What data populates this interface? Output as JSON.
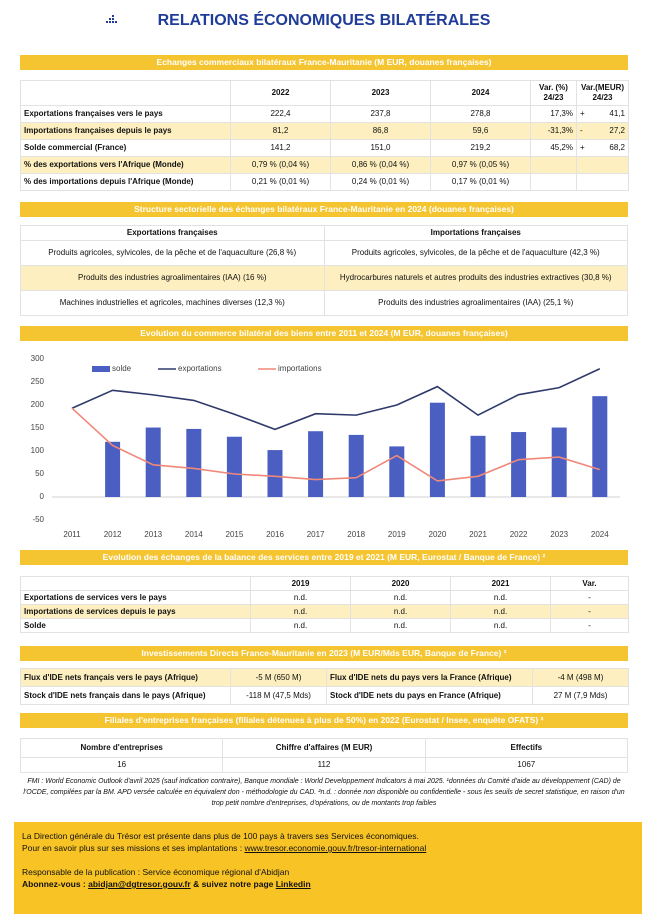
{
  "header": {
    "title": "RELATIONS ÉCONOMIQUES BILATÉRALES"
  },
  "trade": {
    "title": "Echanges commerciaux bilatéraux France-Mauritanie (M EUR, douanes françaises)",
    "columns": [
      "2022",
      "2023",
      "2024",
      [
        "Var. (%)",
        "24/23"
      ],
      [
        "Var.(MEUR)",
        "24/23"
      ]
    ],
    "rows": [
      [
        "Exportations françaises vers le pays",
        "222,4",
        "237,8",
        "278,8",
        "17,3%",
        "+",
        "41,1"
      ],
      [
        "Importations françaises depuis le pays",
        "81,2",
        "86,8",
        "59,6",
        "-31,3%",
        "-",
        "27,2"
      ],
      [
        "Solde commercial (France)",
        "141,2",
        "151,0",
        "219,2",
        "45,2%",
        "+",
        "68,2"
      ],
      [
        "% des exportations vers l'Afrique (Monde)",
        "0,79 % (0,04 %)",
        "0,86 % (0,04 %)",
        "0,97 % (0,05 %)"
      ],
      [
        "% des importations depuis l'Afrique (Monde)",
        "0,21 % (0,01 %)",
        "0,24 % (0,01 %)",
        "0,17 % (0,01 %)"
      ]
    ]
  },
  "sectors": {
    "title": "Structure sectorielle des échanges bilatéraux France-Mauritanie en 2024 (douanes françaises)",
    "headers": [
      "Exportations françaises",
      "Importations françaises"
    ],
    "rows": [
      [
        "Produits agricoles, sylvicoles, de la pêche et de l'aquaculture (26,8 %)",
        "Produits agricoles, sylvicoles, de la pêche et de l'aquaculture (42,3 %)"
      ],
      [
        "Produits des industries agroalimentaires (IAA) (16 %)",
        "Hydrocarbures naturels et autres produits des industries extractives (30,8 %)"
      ],
      [
        "Machines industrielles et agricoles, machines diverses (12,3 %)",
        "Produits des industries agroalimentaires (IAA) (25,1 %)"
      ]
    ]
  },
  "chart_data": {
    "type": "combo",
    "title": "Evolution du commerce bilatéral des biens entre 2011 et 2024 (M EUR, douanes françaises)",
    "categories": [
      "2011",
      "2012",
      "2013",
      "2014",
      "2015",
      "2016",
      "2017",
      "2018",
      "2019",
      "2020",
      "2021",
      "2022",
      "2023",
      "2024"
    ],
    "series": [
      {
        "name": "solde",
        "type": "bar",
        "color": "#4a5fc1",
        "values": [
          0,
          120,
          151,
          148,
          131,
          102,
          143,
          135,
          110,
          205,
          133,
          141.2,
          151.0,
          219.2
        ]
      },
      {
        "name": "exportations",
        "type": "line",
        "color": "#2f3a6b",
        "values": [
          193,
          232,
          222,
          210,
          180,
          147,
          181,
          178,
          200,
          240,
          178,
          222.4,
          237.8,
          278.8
        ]
      },
      {
        "name": "importations",
        "type": "line",
        "color": "#f0887a",
        "values": [
          193,
          112,
          70,
          62,
          50,
          45,
          38,
          42,
          90,
          35,
          45,
          81.2,
          86.8,
          59.6
        ]
      }
    ],
    "ylim": [
      -50,
      300
    ],
    "yticks": [
      -50,
      0,
      50,
      100,
      150,
      200,
      250,
      300
    ],
    "grid": false,
    "legend": "top-left"
  },
  "services": {
    "title": "Evolution des échanges de la balance des services entre 2019 et 2021 (M EUR, Eurostat / Banque de France) ²",
    "headers": [
      "2019",
      "2020",
      "2021",
      "Var."
    ],
    "rows": [
      [
        "Exportations de services vers le pays",
        "n.d.",
        "n.d.",
        "n.d.",
        "-"
      ],
      [
        "Importations de services depuis le pays",
        "n.d.",
        "n.d.",
        "n.d.",
        "-"
      ],
      [
        "Solde",
        "n.d.",
        "n.d.",
        "n.d.",
        "-"
      ]
    ]
  },
  "fdi": {
    "title": "Investissements Directs France-Mauritanie en 2023 (M EUR/Mds EUR, Banque de France) ²",
    "rows": [
      [
        "Flux d'IDE nets français vers le pays (Afrique)",
        "-5 M (650 M)",
        "Flux d'IDE nets du pays vers la France (Afrique)",
        "-4 M (498 M)"
      ],
      [
        "Stock d'IDE nets français dans le pays (Afrique)",
        "-118 M (47,5 Mds)",
        "Stock d'IDE nets du pays  en France (Afrique)",
        "27 M (7,9 Mds)"
      ]
    ]
  },
  "subsidiaries": {
    "title": "Filiales d'entreprises françaises (filiales détenues à plus de 50%) en 2022 (Eurostat / Insee, enquête OFATS) ²",
    "headers": [
      "Nombre d'entreprises",
      "Chiffre d'affaires (M EUR)",
      "Effectifs"
    ],
    "values": [
      "16",
      "112",
      "1067"
    ]
  },
  "footnote": "FMI : World Economic Outlook d'avril 2025 (sauf indication contraire), Banque mondiale : World Developpement Indicators à mai 2025. ¹données du Comité d'aide au développement (CAD) de l'OCDE, compilées par la BM. APD versée calculée en équivalent don - méthodologie du CAD. ²n.d. : donnée non disponible ou confidentielle - sous les seuils de secret statistique, en raison d'un trop petit nombre d'entreprises, d'opérations, ou de montants trop faibles",
  "footer": {
    "line1": "La Direction générale du Trésor est présente dans plus de 100 pays à travers ses Services économiques.",
    "line2_text": "Pour en savoir plus sur ses missions et ses implantations : ",
    "line2_link": "www.tresor.economie.gouv.fr/tresor-international",
    "line3": "Responsable de la publication : Service économique régional d'Abidjan",
    "line4_label": "Abonnez-vous : ",
    "line4_email": "abidjan@dgtresor.gouv.fr",
    "line4_text": " & suivez notre page ",
    "line4_link": "Linkedin"
  }
}
